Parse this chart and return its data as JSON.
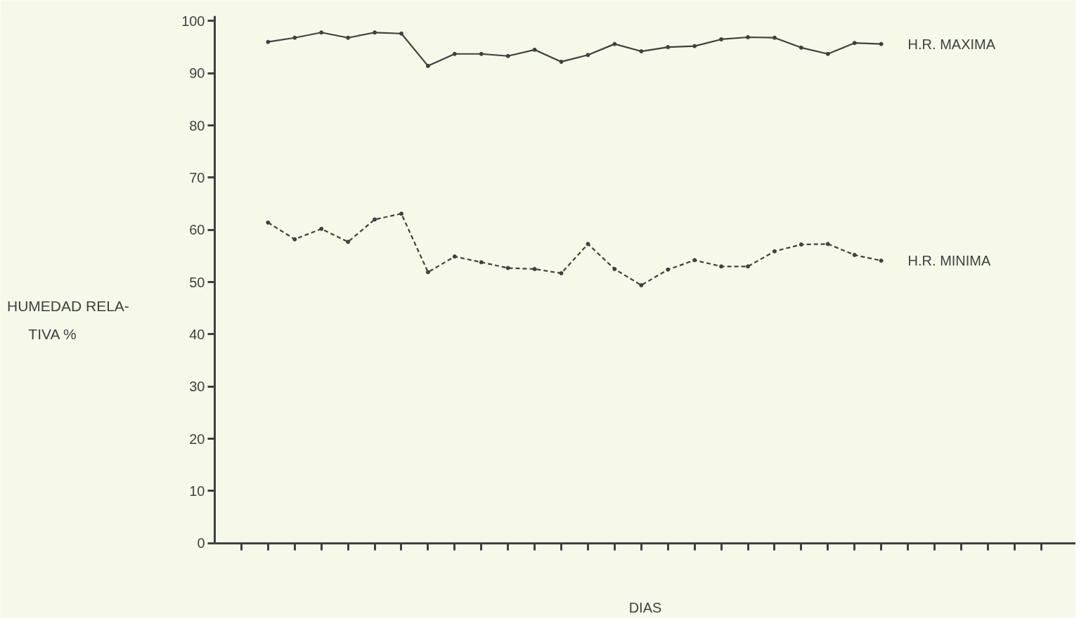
{
  "chart_data": {
    "type": "line",
    "ylabel": "HUMEDAD RELA-\nTIVA  %",
    "xlabel": "DIAS",
    "categories": [
      null,
      null,
      null,
      null,
      null,
      null,
      null,
      null,
      null,
      null,
      null,
      null,
      null,
      null,
      null,
      null,
      null,
      null,
      null,
      null,
      null,
      null,
      null,
      null,
      null,
      null,
      null,
      null,
      null,
      null,
      null
    ],
    "series": [
      {
        "name": "H.R. MAXIMA",
        "color": "#3d423d",
        "line_style": "solid",
        "values": [
          null,
          96.0,
          96.8,
          97.8,
          96.8,
          97.8,
          97.6,
          91.4,
          93.7,
          93.7,
          93.3,
          94.5,
          92.2,
          93.5,
          95.6,
          94.2,
          95.0,
          95.2,
          96.5,
          96.9,
          96.8,
          94.9,
          93.7,
          95.8,
          95.6,
          null,
          null,
          null,
          null,
          null,
          null
        ]
      },
      {
        "name": "H.R. MINIMA",
        "color": "#3d423d",
        "line_style": "dashed",
        "values": [
          null,
          61.4,
          58.2,
          60.2,
          57.7,
          62.0,
          63.1,
          51.9,
          54.9,
          53.8,
          52.7,
          52.5,
          51.7,
          57.3,
          52.5,
          49.4,
          52.4,
          54.2,
          53.0,
          53.0,
          55.9,
          57.2,
          57.3,
          55.2,
          54.1,
          null,
          null,
          null,
          null,
          null,
          null
        ]
      }
    ],
    "marker": "circle",
    "grid": false,
    "legend": "right",
    "tick_labels": "y",
    "ylim": [
      0,
      101
    ],
    "yticks": [
      0,
      10,
      20,
      30,
      40,
      50,
      60,
      70,
      80,
      90,
      100
    ]
  }
}
